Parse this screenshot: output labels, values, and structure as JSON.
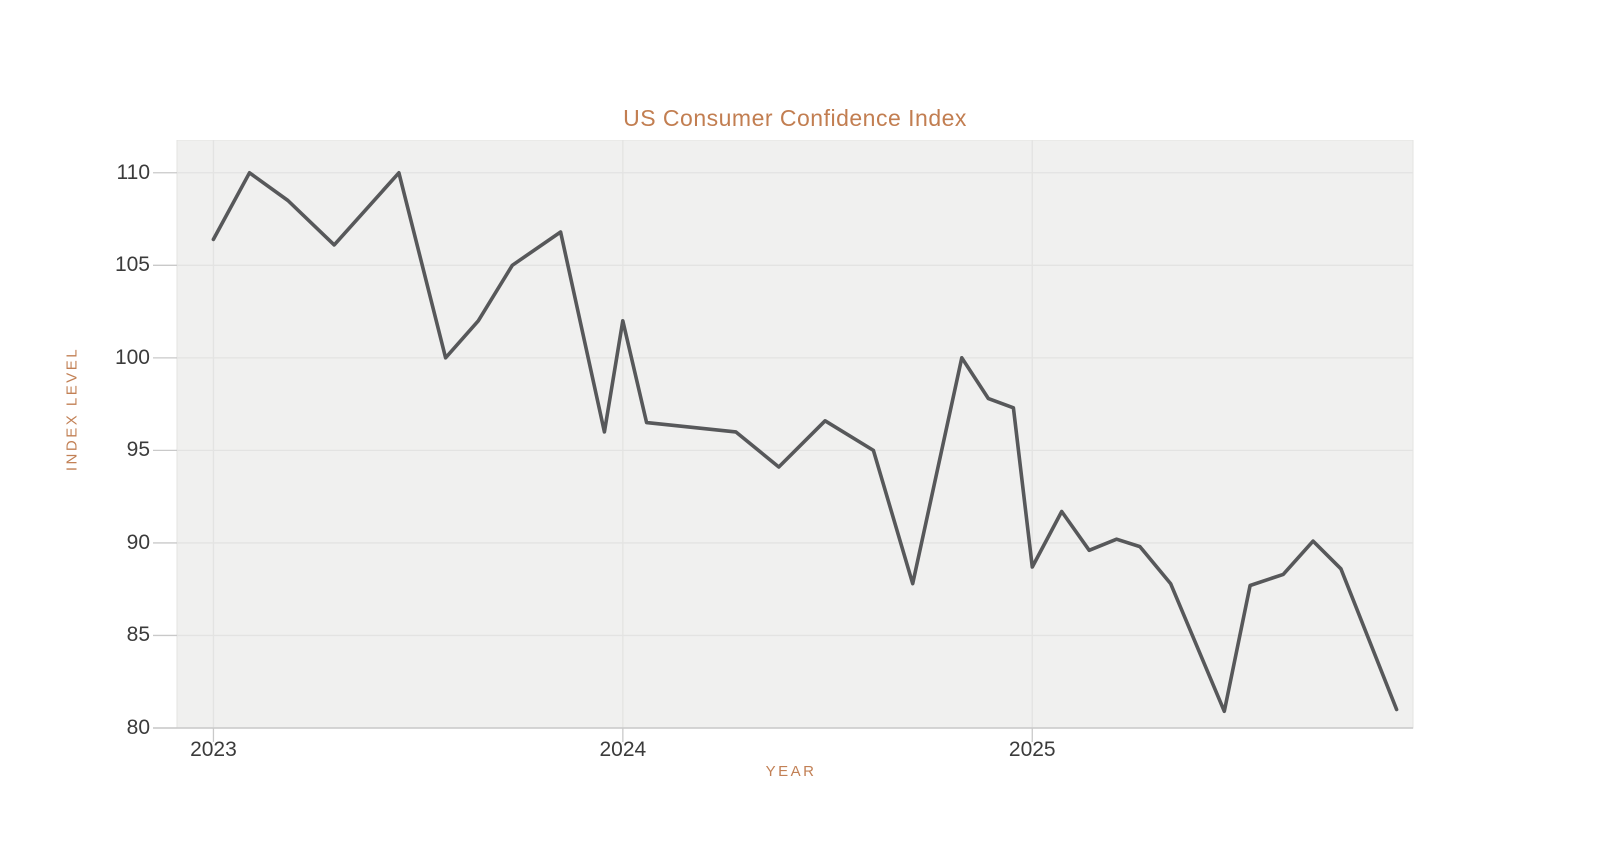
{
  "chart": {
    "title": "US Consumer Confidence Index"
  },
  "colors": {
    "accent": "#c27e51",
    "line": "#57585a",
    "plot_background": "#f0f0ef",
    "gridline": "#e3e3e2",
    "axis_line": "#c9c9c9",
    "tick_text": "#3b3b3b"
  },
  "chart_data": {
    "type": "line",
    "title": "US Consumer Confidence Index",
    "xlabel": "YEAR",
    "ylabel": "INDEX LEVEL",
    "x_ticks": [
      2023,
      2024,
      2025
    ],
    "y_ticks": [
      80,
      85,
      90,
      95,
      100,
      105,
      110
    ],
    "xlim": [
      2022.911,
      2025.93
    ],
    "ylim": [
      80,
      111.77
    ],
    "grid": true,
    "legend": false,
    "series": [
      {
        "name": "US Consumer Confidence Index",
        "color": "#57585a",
        "points": [
          [
            2023.0,
            106.4
          ],
          [
            2023.088,
            110.0
          ],
          [
            2023.182,
            108.5
          ],
          [
            2023.295,
            106.1
          ],
          [
            2023.453,
            110.0
          ],
          [
            2023.567,
            100.0
          ],
          [
            2023.647,
            102.0
          ],
          [
            2023.73,
            105.0
          ],
          [
            2023.848,
            106.8
          ],
          [
            2023.955,
            96.0
          ],
          [
            2024.0,
            102.0
          ],
          [
            2024.058,
            96.5
          ],
          [
            2024.276,
            96.0
          ],
          [
            2024.381,
            94.1
          ],
          [
            2024.494,
            96.6
          ],
          [
            2024.612,
            95.0
          ],
          [
            2024.708,
            87.8
          ],
          [
            2024.828,
            100.0
          ],
          [
            2024.893,
            97.8
          ],
          [
            2024.954,
            97.3
          ],
          [
            2025.0,
            88.7
          ],
          [
            2025.072,
            91.7
          ],
          [
            2025.139,
            89.6
          ],
          [
            2025.206,
            90.2
          ],
          [
            2025.263,
            89.8
          ],
          [
            2025.338,
            87.8
          ],
          [
            2025.469,
            80.9
          ],
          [
            2025.532,
            87.7
          ],
          [
            2025.613,
            88.3
          ],
          [
            2025.686,
            90.1
          ],
          [
            2025.754,
            88.6
          ],
          [
            2025.89,
            81.0
          ]
        ]
      }
    ]
  }
}
